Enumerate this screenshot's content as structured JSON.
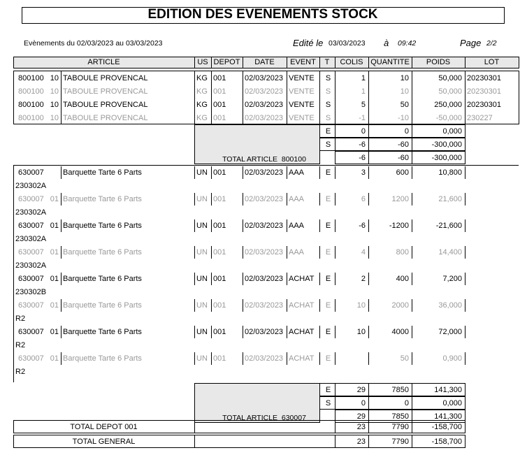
{
  "header": {
    "title": "EDITION DES EVENEMENTS STOCK",
    "period": "Evènements du 02/03/2023 au 03/03/2023",
    "edited_label": "Edité le",
    "edited_date": "03/03/2023",
    "at_label": "à",
    "time": "09:42",
    "page_label": "Page",
    "page": "2/2"
  },
  "columns": [
    "ARTICLE",
    "US",
    "DEPOT",
    "DATE",
    "EVENT",
    "T",
    "COLIS",
    "QUANTITE",
    "POIDS",
    "LOT"
  ],
  "groups": [
    {
      "lot_on_next_line": false,
      "rows": [
        {
          "code": "800100",
          "variant": "10",
          "article": "TABOULE PROVENCAL",
          "us": "KG",
          "depot": "001",
          "date": "02/03/2023",
          "event": "VENTE",
          "t": "S",
          "colis": "1",
          "quantite": "10",
          "poids": "50,000",
          "lot": "20230301",
          "muted": false
        },
        {
          "code": "800100",
          "variant": "10",
          "article": "TABOULE PROVENCAL",
          "us": "KG",
          "depot": "001",
          "date": "02/03/2023",
          "event": "VENTE",
          "t": "S",
          "colis": "1",
          "quantite": "10",
          "poids": "50,000",
          "lot": "20230301",
          "muted": true
        },
        {
          "code": "800100",
          "variant": "10",
          "article": "TABOULE PROVENCAL",
          "us": "KG",
          "depot": "001",
          "date": "02/03/2023",
          "event": "VENTE",
          "t": "S",
          "colis": "5",
          "quantite": "50",
          "poids": "250,000",
          "lot": "20230301",
          "muted": false
        },
        {
          "code": "800100",
          "variant": "10",
          "article": "TABOULE PROVENCAL",
          "us": "KG",
          "depot": "001",
          "date": "02/03/2023",
          "event": "VENTE",
          "t": "S",
          "colis": "-1",
          "quantite": "-10",
          "poids": "-50,000",
          "lot": "230227",
          "muted": true
        }
      ],
      "totals": [
        {
          "t": "E",
          "colis": "0",
          "quantite": "0",
          "poids": "0,000"
        },
        {
          "t": "S",
          "colis": "-6",
          "quantite": "-60",
          "poids": "-300,000"
        },
        {
          "colis": "-6",
          "quantite": "-60",
          "poids": "-300,000"
        }
      ],
      "total_label": "TOTAL ARTICLE  800100"
    },
    {
      "lot_on_next_line": true,
      "rows": [
        {
          "code": "630007",
          "article": "Barquette Tarte 6 Parts",
          "us": "UN",
          "depot": "001",
          "date": "02/03/2023",
          "event": "AAA",
          "t": "E",
          "colis": "3",
          "quantite": "600",
          "poids": "10,800",
          "lot": "230302A",
          "muted": false
        },
        {
          "code": "630007",
          "variant": "01",
          "article": "Barquette Tarte 6 Parts",
          "us": "UN",
          "depot": "001",
          "date": "02/03/2023",
          "event": "AAA",
          "t": "E",
          "colis": "6",
          "quantite": "1200",
          "poids": "21,600",
          "lot": "230302A",
          "muted": true
        },
        {
          "code": "630007",
          "variant": "01",
          "article": "Barquette Tarte 6 Parts",
          "us": "UN",
          "depot": "001",
          "date": "02/03/2023",
          "event": "AAA",
          "t": "E",
          "colis": "-6",
          "quantite": "-1200",
          "poids": "-21,600",
          "lot": "230302A",
          "muted": false
        },
        {
          "code": "630007",
          "variant": "01",
          "article": "Barquette Tarte 6 Parts",
          "us": "UN",
          "depot": "001",
          "date": "02/03/2023",
          "event": "AAA",
          "t": "E",
          "colis": "4",
          "quantite": "800",
          "poids": "14,400",
          "lot": "230302A",
          "muted": true
        },
        {
          "code": "630007",
          "variant": "01",
          "article": "Barquette Tarte 6 Parts",
          "us": "UN",
          "depot": "001",
          "date": "02/03/2023",
          "event": "ACHAT",
          "t": "E",
          "colis": "2",
          "quantite": "400",
          "poids": "7,200",
          "lot": "230302B",
          "muted": false
        },
        {
          "code": "630007",
          "variant": "01",
          "article": "Barquette Tarte 6 Parts",
          "us": "UN",
          "depot": "001",
          "date": "02/03/2023",
          "event": "ACHAT",
          "t": "E",
          "colis": "10",
          "quantite": "2000",
          "poids": "36,000",
          "lot": "R2",
          "muted": true
        },
        {
          "code": "630007",
          "variant": "01",
          "article": "Barquette Tarte 6 Parts",
          "us": "UN",
          "depot": "001",
          "date": "02/03/2023",
          "event": "ACHAT",
          "t": "E",
          "colis": "10",
          "quantite": "4000",
          "poids": "72,000",
          "lot": "R2",
          "muted": false
        },
        {
          "code": "630007",
          "variant": "01",
          "article": "Barquette Tarte 6 Parts",
          "us": "UN",
          "depot": "001",
          "date": "02/03/2023",
          "event": "ACHAT",
          "t": "E",
          "quantite": "50",
          "poids": "0,900",
          "lot": "R2",
          "muted": true
        }
      ],
      "totals": [
        {
          "t": "E",
          "colis": "29",
          "quantite": "7850",
          "poids": "141,300"
        },
        {
          "t": "S",
          "colis": "0",
          "quantite": "0",
          "poids": "0,000"
        },
        {
          "colis": "29",
          "quantite": "7850",
          "poids": "141,300"
        }
      ],
      "total_label": "TOTAL ARTICLE  630007"
    }
  ],
  "summary": [
    {
      "label": "TOTAL DEPOT 001",
      "colis": "23",
      "quantite": "7790",
      "poids": "-158,700"
    },
    {
      "label": "TOTAL GENERAL",
      "colis": "23",
      "quantite": "7790",
      "poids": "-158,700"
    }
  ]
}
